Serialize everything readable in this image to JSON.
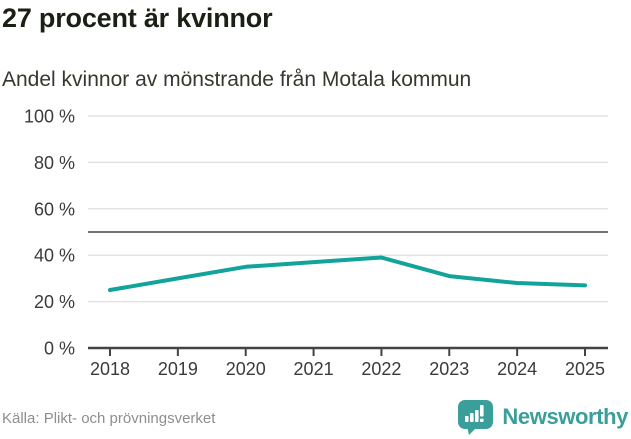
{
  "header": {
    "title": "27 procent är kvinnor",
    "subtitle": "Andel kvinnor av mönstrande från Motala kommun"
  },
  "chart_data": {
    "type": "line",
    "title": "27 procent är kvinnor",
    "subtitle": "Andel kvinnor av mönstrande från Motala kommun",
    "x": [
      "2018",
      "2019",
      "2020",
      "2021",
      "2022",
      "2023",
      "2024",
      "2025"
    ],
    "series": [
      {
        "name": "Andel kvinnor av mönstrande",
        "values": [
          25,
          30,
          35,
          37,
          39,
          31,
          28,
          27
        ]
      }
    ],
    "unit": "%",
    "ylim": [
      0,
      100
    ],
    "yticks": [
      0,
      20,
      40,
      60,
      80,
      100
    ],
    "ytick_labels": [
      "0 %",
      "20 %",
      "40 %",
      "60 %",
      "80 %",
      "100 %"
    ],
    "reference_line": 50,
    "grid": true,
    "legend": "none",
    "colors": {
      "line": "#12A39A",
      "grid": "#E3E3E3",
      "reference": "#737373",
      "axis": "#444444",
      "tick_text": "#3B3B3B"
    }
  },
  "footer": {
    "source": "Källa: Plikt- och prövningsverket",
    "brand": "Newsworthy",
    "brand_color": "#3A9E9B"
  }
}
